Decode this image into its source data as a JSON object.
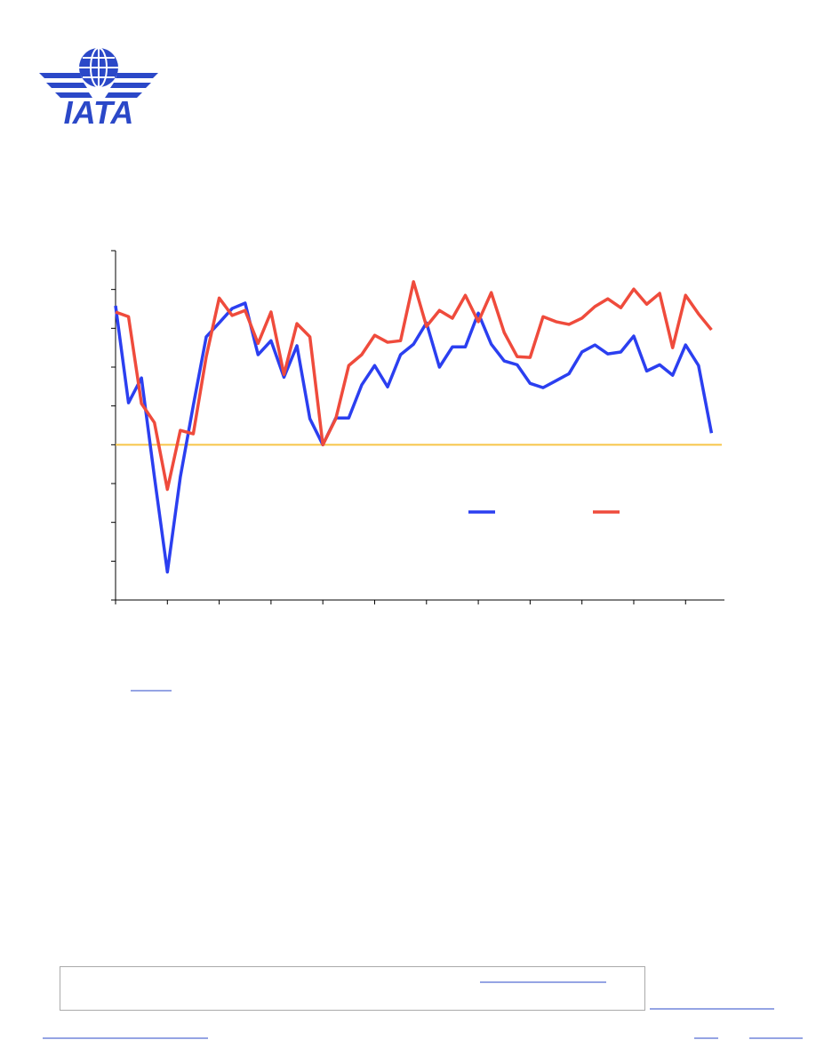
{
  "header": {
    "logo_text": "IATA"
  },
  "chart_data": {
    "type": "line",
    "x": [
      0,
      1,
      2,
      3,
      4,
      5,
      6,
      7,
      8,
      9,
      10,
      11,
      12,
      13,
      14,
      15,
      16,
      17,
      18,
      19,
      20,
      21,
      22,
      23,
      24,
      25,
      26,
      27,
      28,
      29,
      30,
      31,
      32,
      33,
      34,
      35,
      36,
      37,
      38,
      39,
      40,
      41,
      42,
      43,
      44,
      45,
      46
    ],
    "series": [
      {
        "color": "#2b3ff0",
        "values": [
          3.58,
          1.08,
          1.72,
          -0.83,
          -3.28,
          -0.83,
          1.01,
          2.78,
          3.14,
          3.51,
          3.65,
          2.32,
          2.68,
          1.74,
          2.55,
          0.67,
          0,
          0.69,
          0.69,
          1.54,
          2.04,
          1.49,
          2.32,
          2.59,
          3.14,
          2.0,
          2.52,
          2.52,
          3.39,
          2.59,
          2.16,
          2.06,
          1.58,
          1.47,
          1.65,
          1.83,
          2.39,
          2.57,
          2.34,
          2.39,
          2.8,
          1.9,
          2.06,
          1.79,
          2.57,
          2.04,
          0.3
        ]
      },
      {
        "color": "#ef4b3c",
        "values": [
          3.42,
          3.3,
          1.06,
          0.57,
          -1.15,
          0.37,
          0.28,
          2.27,
          3.78,
          3.33,
          3.46,
          2.61,
          3.42,
          1.81,
          3.12,
          2.78,
          0,
          0.67,
          2.04,
          2.32,
          2.82,
          2.64,
          2.68,
          4.2,
          3.05,
          3.46,
          3.26,
          3.85,
          3.17,
          3.92,
          2.89,
          2.27,
          2.25,
          3.3,
          3.17,
          3.1,
          3.26,
          3.56,
          3.76,
          3.53,
          4.01,
          3.62,
          3.9,
          2.5,
          3.85,
          3.37,
          2.96
        ]
      }
    ],
    "xlim": [
      0,
      47
    ],
    "xticks": [
      0,
      4,
      8,
      12,
      16,
      20,
      24,
      28,
      32,
      36,
      40,
      44
    ],
    "ylim": [
      -4,
      5
    ],
    "yticks": [
      -4,
      -3,
      -2,
      -1,
      0,
      1,
      2,
      3,
      4,
      5
    ],
    "reference_line": {
      "value": 0,
      "color": "#f7c548"
    }
  }
}
